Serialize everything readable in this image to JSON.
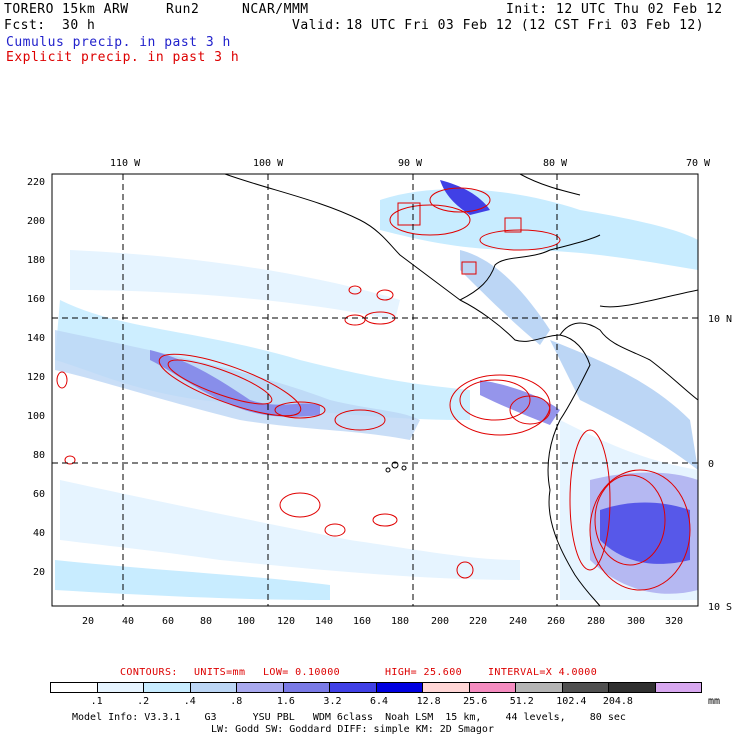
{
  "header": {
    "model": "TORERO",
    "resolution": "15km ARW",
    "run": "Run2",
    "org": "NCAR/MMM",
    "init_label": "Init:",
    "init": "12 UTC Thu 02 Feb 12",
    "fcst_label": "Fcst:",
    "fcst": "30 h",
    "valid_label": "Valid:",
    "valid": "18 UTC Fri 03 Feb 12 (12 CST Fri 03 Feb 12)"
  },
  "legend_titles": {
    "cumulus": "Cumulus precip. in past 3 h",
    "explicit": "Explicit precip. in past 3 h"
  },
  "map": {
    "top_lon_labels": [
      "110 W",
      "100 W",
      "90 W",
      "80 W",
      "70 W"
    ],
    "right_lat_labels": [
      "10 N",
      "0",
      "10 S"
    ],
    "left_grid_labels": [
      "220",
      "200",
      "180",
      "160",
      "140",
      "120",
      "100",
      "80",
      "60",
      "40",
      "20"
    ],
    "bottom_grid_labels": [
      "20",
      "40",
      "60",
      "80",
      "100",
      "120",
      "140",
      "160",
      "180",
      "200",
      "220",
      "240",
      "260",
      "280",
      "300",
      "320"
    ]
  },
  "contour_info": {
    "label": "CONTOURS:",
    "units": "UNITS=mm",
    "low": "LOW= 0.10000",
    "high": "HIGH= 25.600",
    "interval": "INTERVAL=X 4.0000"
  },
  "color_scale": {
    "colors": [
      "#ffffff",
      "#e6f4ff",
      "#c8ecff",
      "#bcd6f5",
      "#a9a9ef",
      "#7a7ae6",
      "#4040e6",
      "#0000e0",
      "#ffd6d6",
      "#f58cc0",
      "#b4b4b4",
      "#505050",
      "#303030",
      "#d8a8f0"
    ],
    "labels": [
      ".1",
      ".2",
      ".4",
      ".8",
      "1.6",
      "3.2",
      "6.4",
      "12.8",
      "25.6",
      "51.2",
      "102.4",
      "204.8"
    ],
    "unit": "mm"
  },
  "footer": {
    "line1": "Model Info: V3.3.1    G3      YSU PBL   WDM 6class  Noah LSM  15 km,    44 levels,    80 sec",
    "line2": "LW: Godd SW: Goddard DIFF: simple KM: 2D Smagor"
  }
}
